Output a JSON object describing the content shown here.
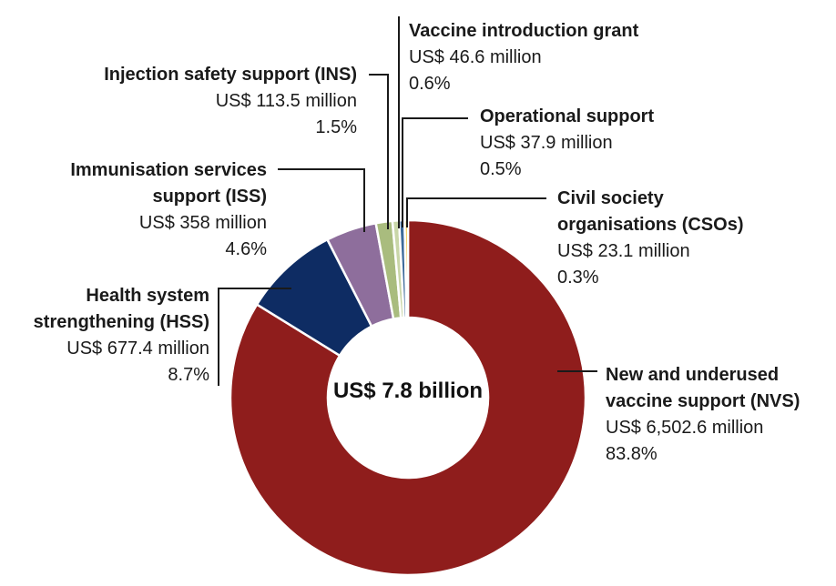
{
  "chart_data": {
    "type": "pie",
    "variant": "donut",
    "center_label": "US$ 7.8 billion",
    "legend": "none",
    "slices": [
      {
        "name_lines": [
          "New and underused",
          "vaccine support (NVS)"
        ],
        "amount": "US$ 6,502.6 million",
        "percent_label": "83.8%",
        "value": 83.8,
        "color": "#8f1d1c"
      },
      {
        "name_lines": [
          "Health system",
          "strengthening (HSS)"
        ],
        "amount": "US$ 677.4 million",
        "percent_label": "8.7%",
        "value": 8.7,
        "color": "#0e2c63"
      },
      {
        "name_lines": [
          "Immunisation services",
          "support (ISS)"
        ],
        "amount": "US$ 358 million",
        "percent_label": "4.6%",
        "value": 4.6,
        "color": "#8e6e9c"
      },
      {
        "name_lines": [
          "Injection safety support (INS)"
        ],
        "amount": "US$ 113.5 million",
        "percent_label": "1.5%",
        "value": 1.5,
        "color": "#a9bc7e"
      },
      {
        "name_lines": [
          "Vaccine introduction grant"
        ],
        "amount": "US$ 46.6 million",
        "percent_label": "0.6%",
        "value": 0.6,
        "color": "#c9d6a8"
      },
      {
        "name_lines": [
          "Operational support"
        ],
        "amount": "US$ 37.9 million",
        "percent_label": "0.5%",
        "value": 0.5,
        "color": "#3d6a9a"
      },
      {
        "name_lines": [
          "Civil society",
          "organisations (CSOs)"
        ],
        "amount": "US$ 23.1 million",
        "percent_label": "0.3%",
        "value": 0.3,
        "color": "#f0c43a"
      }
    ]
  }
}
